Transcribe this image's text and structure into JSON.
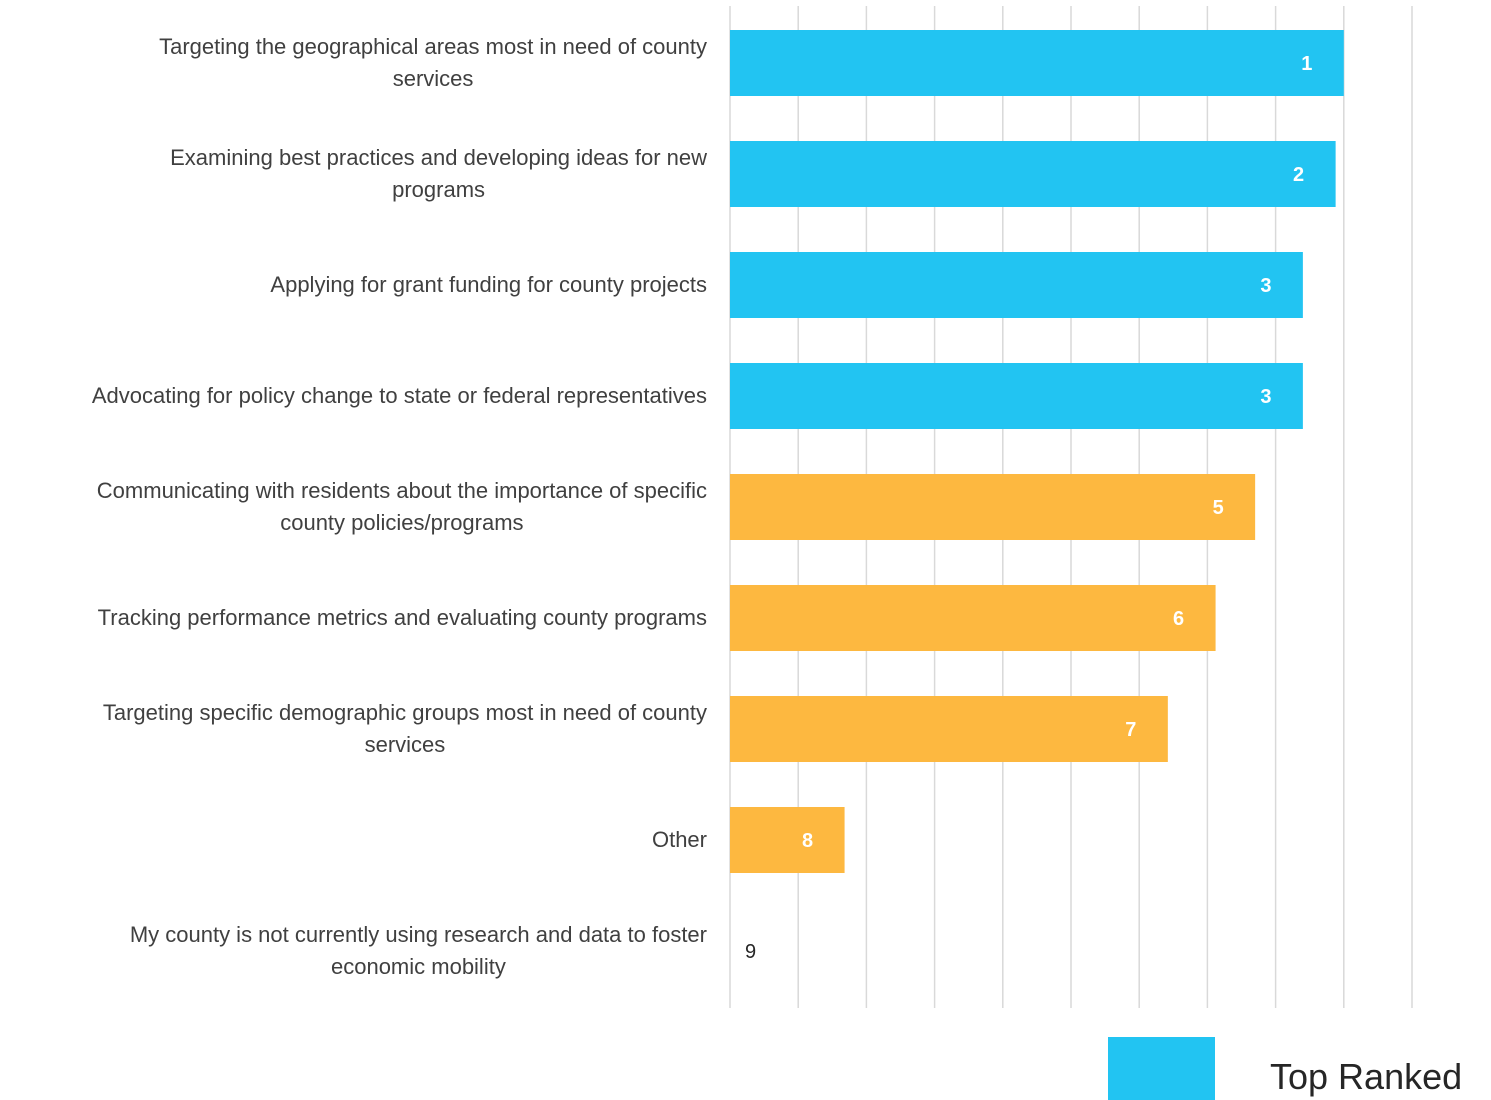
{
  "chart_data": {
    "type": "bar",
    "orientation": "horizontal",
    "categories": [
      [
        "Targeting the geographical areas most in need of county",
        "services"
      ],
      [
        "Examining best practices and developing ideas for new",
        "programs"
      ],
      [
        "Applying for grant funding for county projects"
      ],
      [
        "Advocating for policy change to state or federal representatives"
      ],
      [
        "Communicating with residents about the importance of specific",
        "county policies/programs"
      ],
      [
        "Tracking performance metrics and evaluating county programs"
      ],
      [
        "Targeting specific demographic groups most in need of county",
        "services"
      ],
      [
        "Other"
      ],
      [
        "My county is not currently using research and data to foster",
        "economic mobility"
      ]
    ],
    "values": [
      9.0,
      8.88,
      8.4,
      8.4,
      7.7,
      7.12,
      6.42,
      1.68,
      0
    ],
    "data_labels": [
      "1",
      "2",
      "3",
      "3",
      "5",
      "6",
      "7",
      "8",
      "9"
    ],
    "groups": [
      "top",
      "top",
      "top",
      "top",
      "other",
      "other",
      "other",
      "other",
      "other"
    ],
    "colors": {
      "top": "#22c4f2",
      "other": "#fdb840",
      "grid": "#d9d9d9"
    },
    "xlim": [
      0,
      10
    ],
    "grid": true,
    "legend": {
      "position": "bottom-right",
      "entries": [
        {
          "label": "Top Ranked",
          "color": "#22c4f2"
        }
      ]
    }
  }
}
